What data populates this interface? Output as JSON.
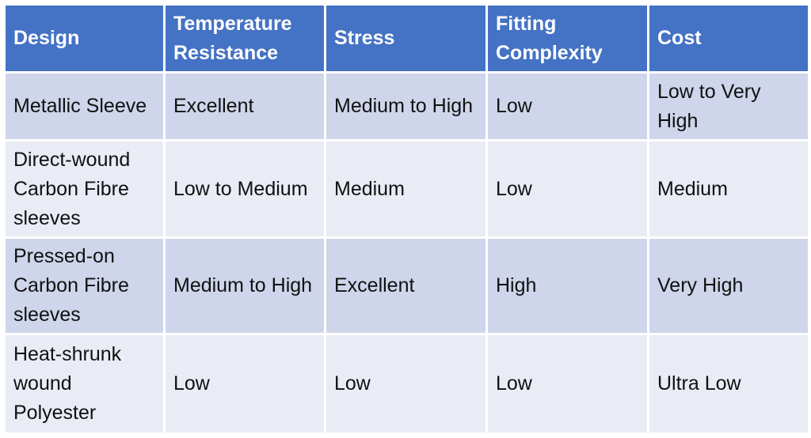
{
  "table": {
    "columns": [
      "Design",
      "Temperature Resistance",
      "Stress",
      "Fitting Complexity",
      "Cost"
    ],
    "rows": [
      [
        "Metallic Sleeve",
        "Excellent",
        "Medium to High",
        "Low",
        "Low to Very High"
      ],
      [
        "Direct-wound Carbon Fibre sleeves",
        "Low to Medium",
        "Medium",
        "Low",
        "Medium"
      ],
      [
        "Pressed-on Carbon Fibre sleeves",
        "Medium to High",
        "Excellent",
        "High",
        "Very High"
      ],
      [
        "Heat-shrunk wound Polyester",
        "Low",
        "Low",
        "Low",
        "Ultra Low"
      ]
    ]
  },
  "colors": {
    "header_bg": "#4472c4",
    "header_text": "#ffffff",
    "row_band_dark": "#cfd5ea",
    "row_band_light": "#e9ebf5"
  }
}
